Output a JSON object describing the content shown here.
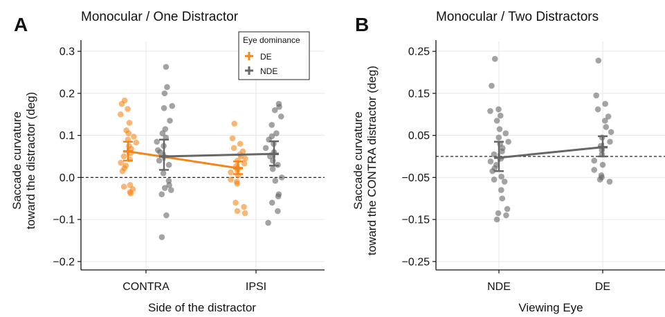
{
  "chart_data": [
    {
      "panel": "A",
      "title": "Monocular / One Distractor",
      "type": "scatter",
      "xlabel": "Side of the distractor",
      "ylabel": [
        "Saccade curvature",
        "toward the distractor (deg)"
      ],
      "categories": [
        "CONTRA",
        "IPSI"
      ],
      "ylim": [
        -0.22,
        0.32
      ],
      "yticks": [
        -0.2,
        -0.1,
        0.0,
        0.1,
        0.2,
        0.3
      ],
      "ytick_labels": [
        "−0.2",
        "−0.1",
        "0.0",
        "0.1",
        "0.2",
        "0.3"
      ],
      "reference_line": 0.0,
      "grid": true,
      "legend": {
        "title": "Eye dominance",
        "position": "top-right"
      },
      "series": [
        {
          "name": "DE",
          "color": "#f58518",
          "means": [
            0.062,
            0.022
          ],
          "ci": [
            [
              0.04,
              0.085
            ],
            [
              0.008,
              0.038
            ]
          ],
          "points": [
            [
              0.183,
              0.175,
              0.163,
              0.15,
              0.13,
              0.112,
              0.105,
              0.097,
              0.09,
              0.083,
              0.075,
              0.068,
              0.058,
              0.05,
              0.043,
              0.035,
              0.028,
              0.022,
              0.015,
              -0.018,
              -0.022,
              -0.028,
              -0.035,
              -0.038
            ],
            [
              0.128,
              0.093,
              0.08,
              0.07,
              0.062,
              0.055,
              0.05,
              0.045,
              0.04,
              0.033,
              0.027,
              0.022,
              0.017,
              0.012,
              0.005,
              -0.005,
              -0.01,
              -0.015,
              -0.06,
              -0.07,
              -0.08,
              -0.085
            ]
          ]
        },
        {
          "name": "NDE",
          "color": "#666666",
          "means": [
            0.05,
            0.056
          ],
          "ci": [
            [
              0.018,
              0.09
            ],
            [
              0.028,
              0.086
            ]
          ],
          "points": [
            [
              0.263,
              0.215,
              0.2,
              0.17,
              0.165,
              0.135,
              0.115,
              0.105,
              0.095,
              0.085,
              0.075,
              0.065,
              0.06,
              0.05,
              0.04,
              0.03,
              0.01,
              -0.008,
              -0.018,
              -0.025,
              -0.03,
              -0.04,
              -0.09,
              -0.142
            ],
            [
              0.175,
              0.168,
              0.16,
              0.145,
              0.125,
              0.105,
              0.098,
              0.09,
              0.08,
              0.07,
              0.06,
              0.05,
              0.04,
              0.03,
              0.02,
              0.0,
              -0.008,
              -0.04,
              -0.045,
              -0.06,
              -0.08,
              -0.108
            ]
          ]
        }
      ]
    },
    {
      "panel": "B",
      "title": "Monocular / Two Distractors",
      "type": "scatter",
      "xlabel": "Viewing Eye",
      "ylabel": [
        "Saccade curvature",
        "toward the CONTRA distractor (deg)"
      ],
      "categories": [
        "NDE",
        "DE"
      ],
      "ylim": [
        -0.27,
        0.27
      ],
      "yticks": [
        -0.25,
        -0.15,
        -0.05,
        0.05,
        0.15,
        0.25
      ],
      "ytick_labels": [
        "−0.25",
        "−0.15",
        "−0.05",
        "0.05",
        "0.15",
        "0.25"
      ],
      "reference_line": 0.0,
      "grid": true,
      "series": [
        {
          "name": "",
          "color": "#666666",
          "means": [
            -0.003,
            0.022
          ],
          "ci": [
            [
              -0.035,
              0.035
            ],
            [
              0.0,
              0.048
            ]
          ],
          "points": [
            [
              0.232,
              0.168,
              0.112,
              0.108,
              0.097,
              0.085,
              0.065,
              0.055,
              0.045,
              0.035,
              0.03,
              0.02,
              0.012,
              0.005,
              -0.005,
              -0.012,
              -0.02,
              -0.028,
              -0.035,
              -0.048,
              -0.055,
              -0.06,
              -0.08,
              -0.1,
              -0.125,
              -0.135,
              -0.14,
              -0.15
            ],
            [
              0.228,
              0.145,
              0.125,
              0.112,
              0.095,
              0.085,
              0.07,
              0.058,
              0.045,
              0.035,
              0.025,
              0.015,
              0.005,
              -0.01,
              -0.02,
              -0.032,
              -0.045,
              -0.05,
              -0.055,
              -0.06
            ]
          ]
        }
      ]
    }
  ]
}
